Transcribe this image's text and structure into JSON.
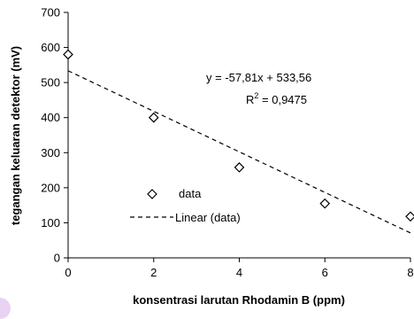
{
  "chart_data": {
    "type": "scatter",
    "xlabel": "konsentrasi larutan Rhodamin B (ppm)",
    "ylabel": "tegangan keluaran detektor (mV)",
    "xlim": [
      0,
      8
    ],
    "ylim": [
      0,
      700
    ],
    "xticks": [
      "0",
      "2",
      "4",
      "6",
      "8"
    ],
    "yticks": [
      "0",
      "100",
      "200",
      "300",
      "400",
      "500",
      "600",
      "700"
    ],
    "grid": false,
    "series": [
      {
        "name": "data",
        "marker": "diamond",
        "x": [
          0,
          2,
          4,
          6,
          8
        ],
        "y": [
          580,
          400,
          258,
          155,
          118
        ]
      }
    ],
    "trendline": {
      "name": "Linear (data)",
      "slope": -57.81,
      "intercept": 533.56,
      "style": "dashed"
    },
    "annotations": {
      "equation": "y = -57,81x + 533,56",
      "r2_prefix": "R",
      "r2_sup": "2",
      "r2_value": " = 0,9475"
    },
    "legend": {
      "placement": "lower-left-inside",
      "items": [
        "data",
        "Linear (data)"
      ]
    }
  }
}
